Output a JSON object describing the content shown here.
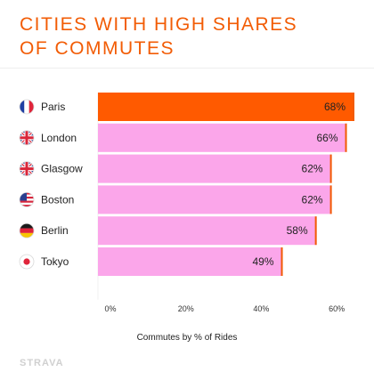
{
  "title_lines": [
    "CITIES WITH HIGH SHARES",
    "OF COMMUTES"
  ],
  "brand": "STRAVA",
  "colors": {
    "accent": "#f25c05",
    "bar": "#fba6ea",
    "highlight": "#ff5a00",
    "bar_edge": "#f25c05"
  },
  "chart_data": {
    "type": "bar",
    "orientation": "horizontal",
    "title": "CITIES WITH HIGH SHARES OF COMMUTES",
    "xlabel": "Commutes by % of Rides",
    "ylabel": "",
    "categories": [
      "Paris",
      "London",
      "Glasgow",
      "Boston",
      "Berlin",
      "Tokyo"
    ],
    "flags": [
      "france-flag-icon",
      "uk-flag-icon",
      "uk-flag-icon",
      "usa-flag-icon",
      "germany-flag-icon",
      "japan-flag-icon"
    ],
    "values": [
      68,
      66,
      62,
      62,
      58,
      49
    ],
    "value_labels": [
      "68%",
      "66%",
      "62%",
      "62%",
      "58%",
      "49%"
    ],
    "highlighted": "Paris",
    "xlim": [
      0,
      68
    ],
    "xticks": [
      0,
      20,
      40,
      60
    ],
    "xtick_labels": [
      "0%",
      "20%",
      "40%",
      "60%"
    ],
    "grid": false,
    "legend": "none"
  }
}
